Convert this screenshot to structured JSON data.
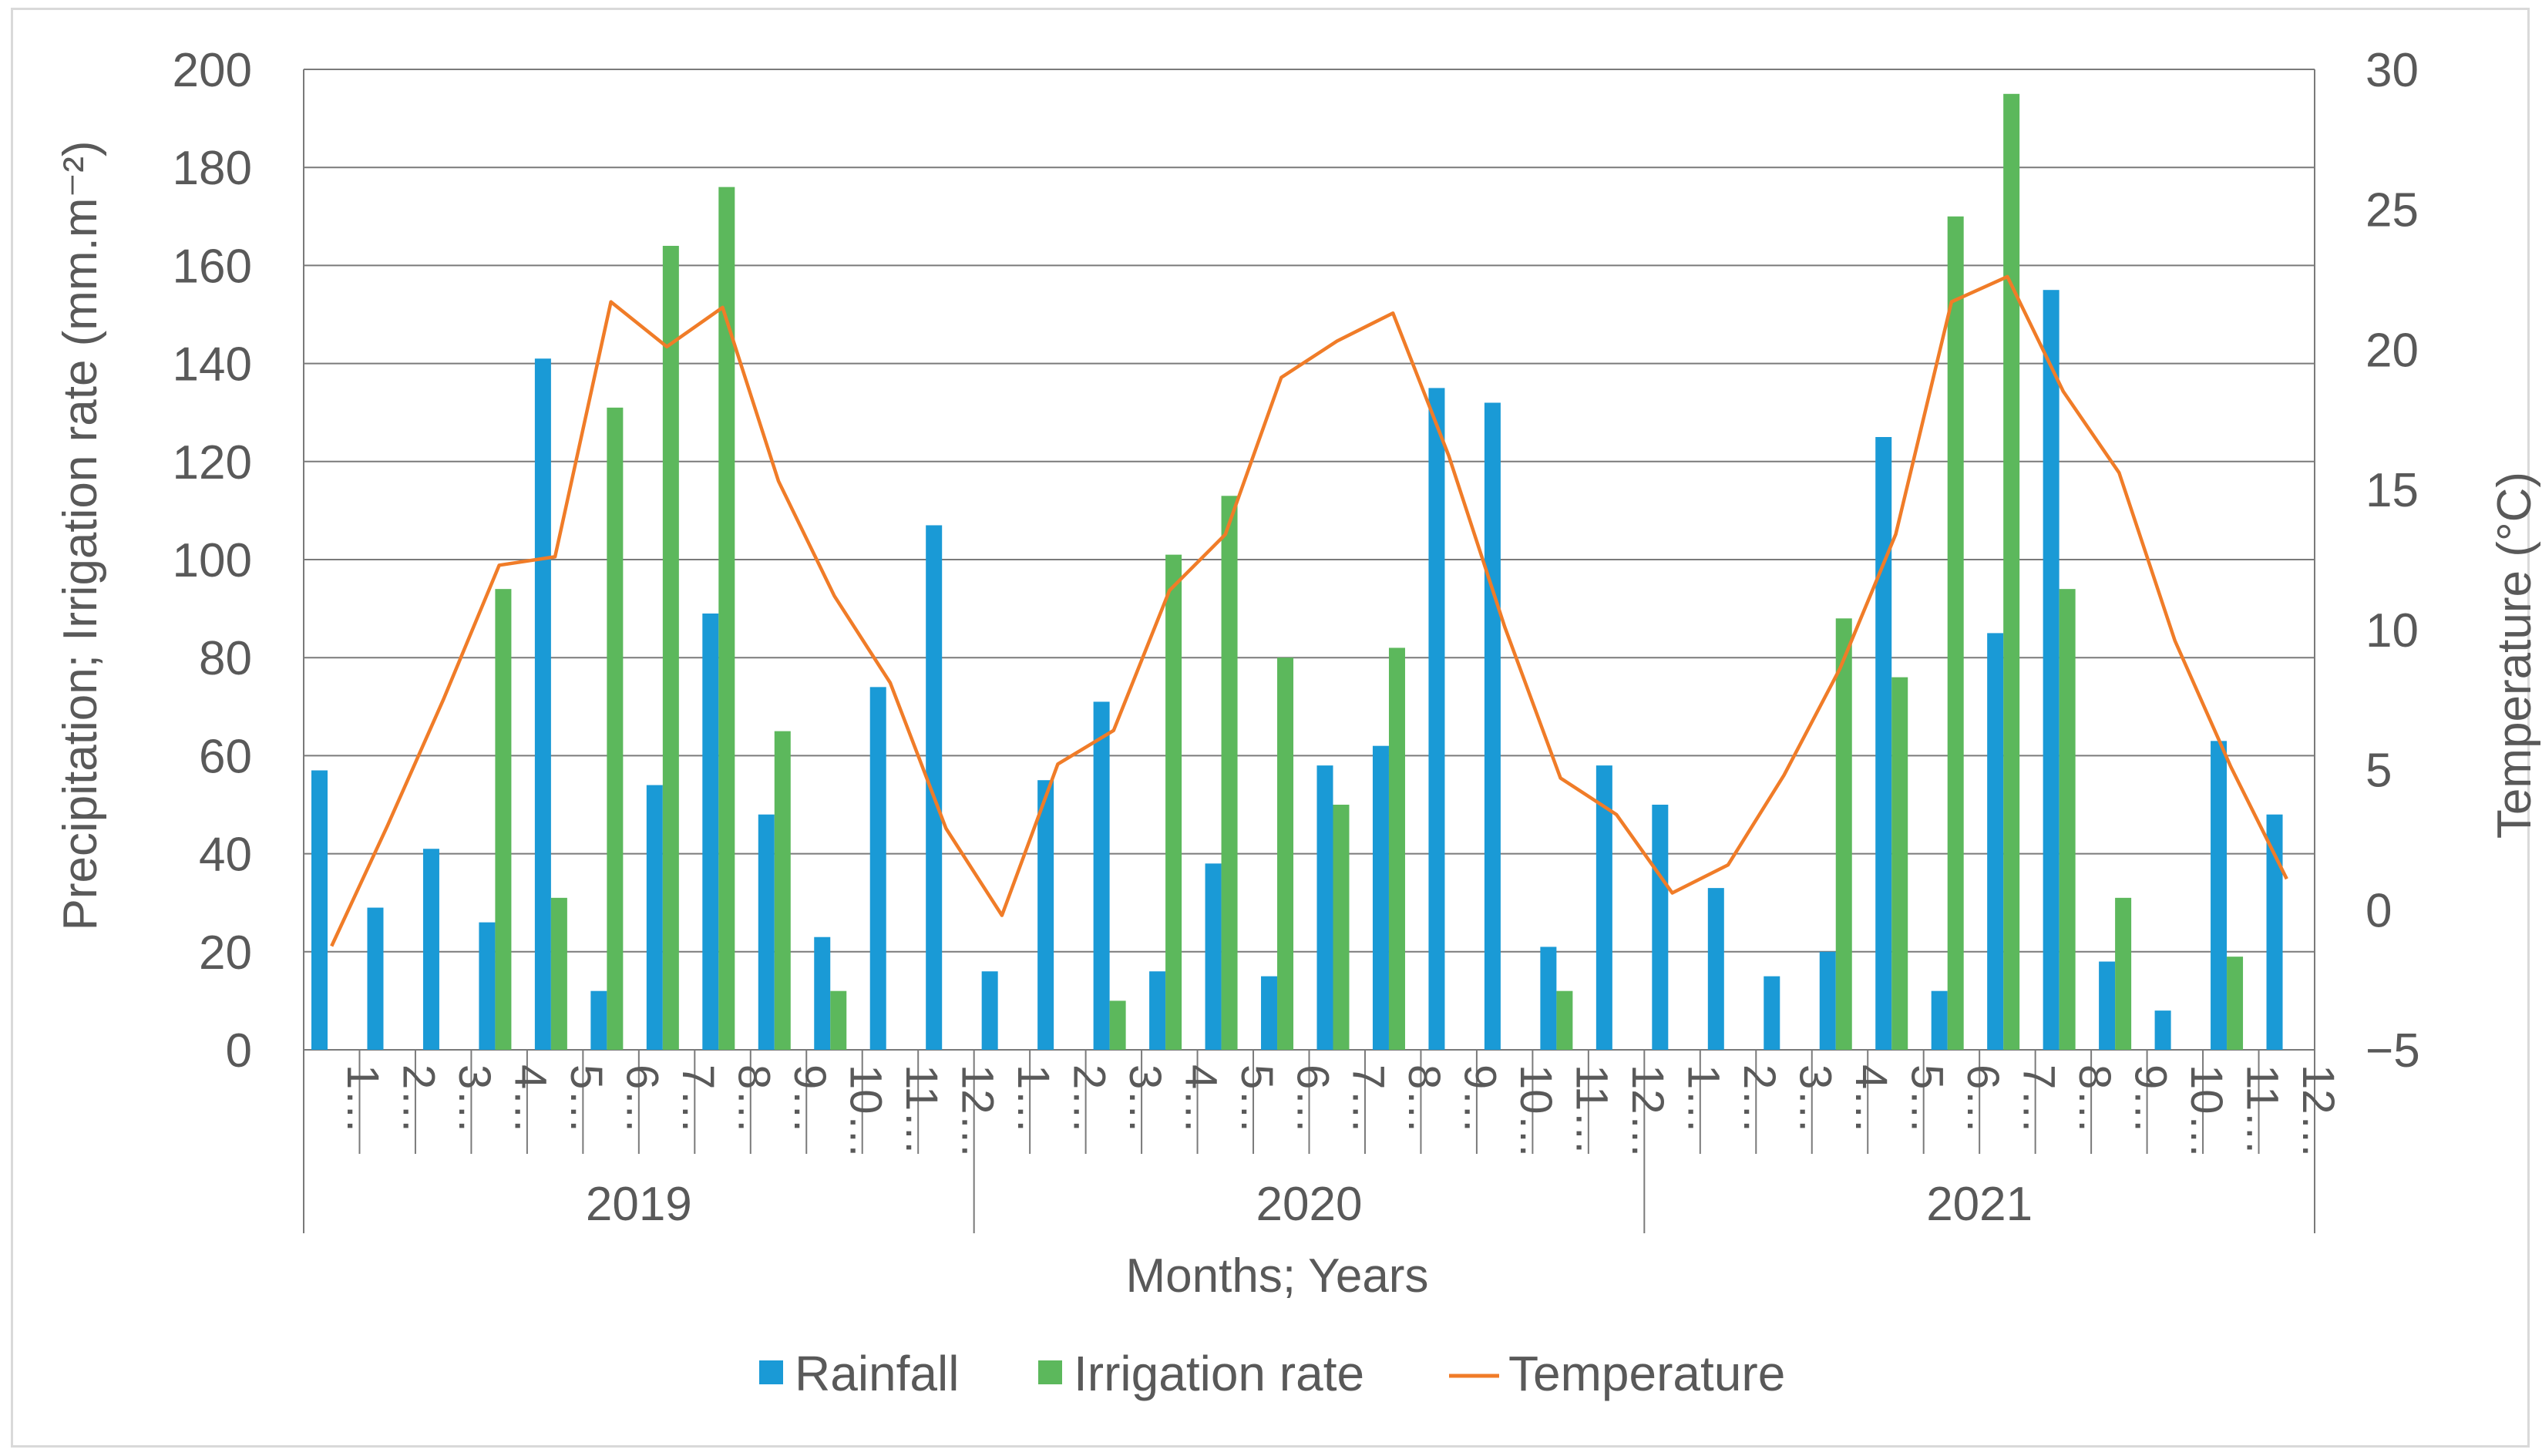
{
  "chart_data": {
    "type": "bar",
    "title": "",
    "xlabel": "Months; Years",
    "ylabel": "Precipitation; Irrigation rate (mm.m⁻²)",
    "y2label": "Temperature (°C)",
    "ylim": [
      0,
      200
    ],
    "y_ticks": [
      "0",
      "20",
      "40",
      "60",
      "80",
      "100",
      "120",
      "140",
      "160",
      "180",
      "200"
    ],
    "y2lim": [
      -5,
      30
    ],
    "y2_ticks": [
      "−5",
      "0",
      "5",
      "10",
      "15",
      "20",
      "25",
      "30"
    ],
    "grid": true,
    "legend_position": "bottom",
    "years": [
      "2019",
      "2020",
      "2021"
    ],
    "categories": [
      "1…",
      "2…",
      "3…",
      "4…",
      "5…",
      "6…",
      "7…",
      "8…",
      "9…",
      "10…",
      "11…",
      "12…",
      "1…",
      "2…",
      "3…",
      "4…",
      "5…",
      "6…",
      "7…",
      "8…",
      "9…",
      "10…",
      "11…",
      "12…",
      "1…",
      "2…",
      "3…",
      "4…",
      "5…",
      "6…",
      "7…",
      "8…",
      "9…",
      "10…",
      "11…",
      "12…"
    ],
    "series": [
      {
        "name": "Rainfall",
        "type": "bar",
        "axis": "left",
        "color": "#1a9ad6",
        "values": [
          57,
          29,
          41,
          26,
          141,
          12,
          54,
          89,
          48,
          23,
          74,
          107,
          16,
          55,
          71,
          16,
          38,
          15,
          58,
          62,
          135,
          132,
          21,
          58,
          50,
          33,
          15,
          20,
          125,
          12,
          85,
          155,
          18,
          8,
          63,
          48
        ]
      },
      {
        "name": "Irrigation rate",
        "type": "bar",
        "axis": "left",
        "color": "#5cb85c",
        "values": [
          0,
          0,
          0,
          94,
          31,
          131,
          164,
          176,
          65,
          12,
          0,
          0,
          0,
          0,
          10,
          101,
          113,
          80,
          50,
          82,
          0,
          0,
          12,
          0,
          0,
          0,
          0,
          88,
          76,
          170,
          195,
          94,
          31,
          0,
          19,
          0
        ]
      },
      {
        "name": "Temperature",
        "type": "line",
        "axis": "right",
        "color": "#f07c28",
        "values": [
          -1.3,
          3.0,
          7.5,
          12.3,
          12.6,
          21.7,
          20.1,
          21.5,
          15.3,
          11.2,
          8.1,
          2.9,
          -0.2,
          5.2,
          6.4,
          11.4,
          13.4,
          19.0,
          20.3,
          21.3,
          16.2,
          10.1,
          4.7,
          3.4,
          0.6,
          1.6,
          4.8,
          8.6,
          13.4,
          21.7,
          22.6,
          18.5,
          15.6,
          9.6,
          5.1,
          1.1
        ]
      }
    ]
  }
}
